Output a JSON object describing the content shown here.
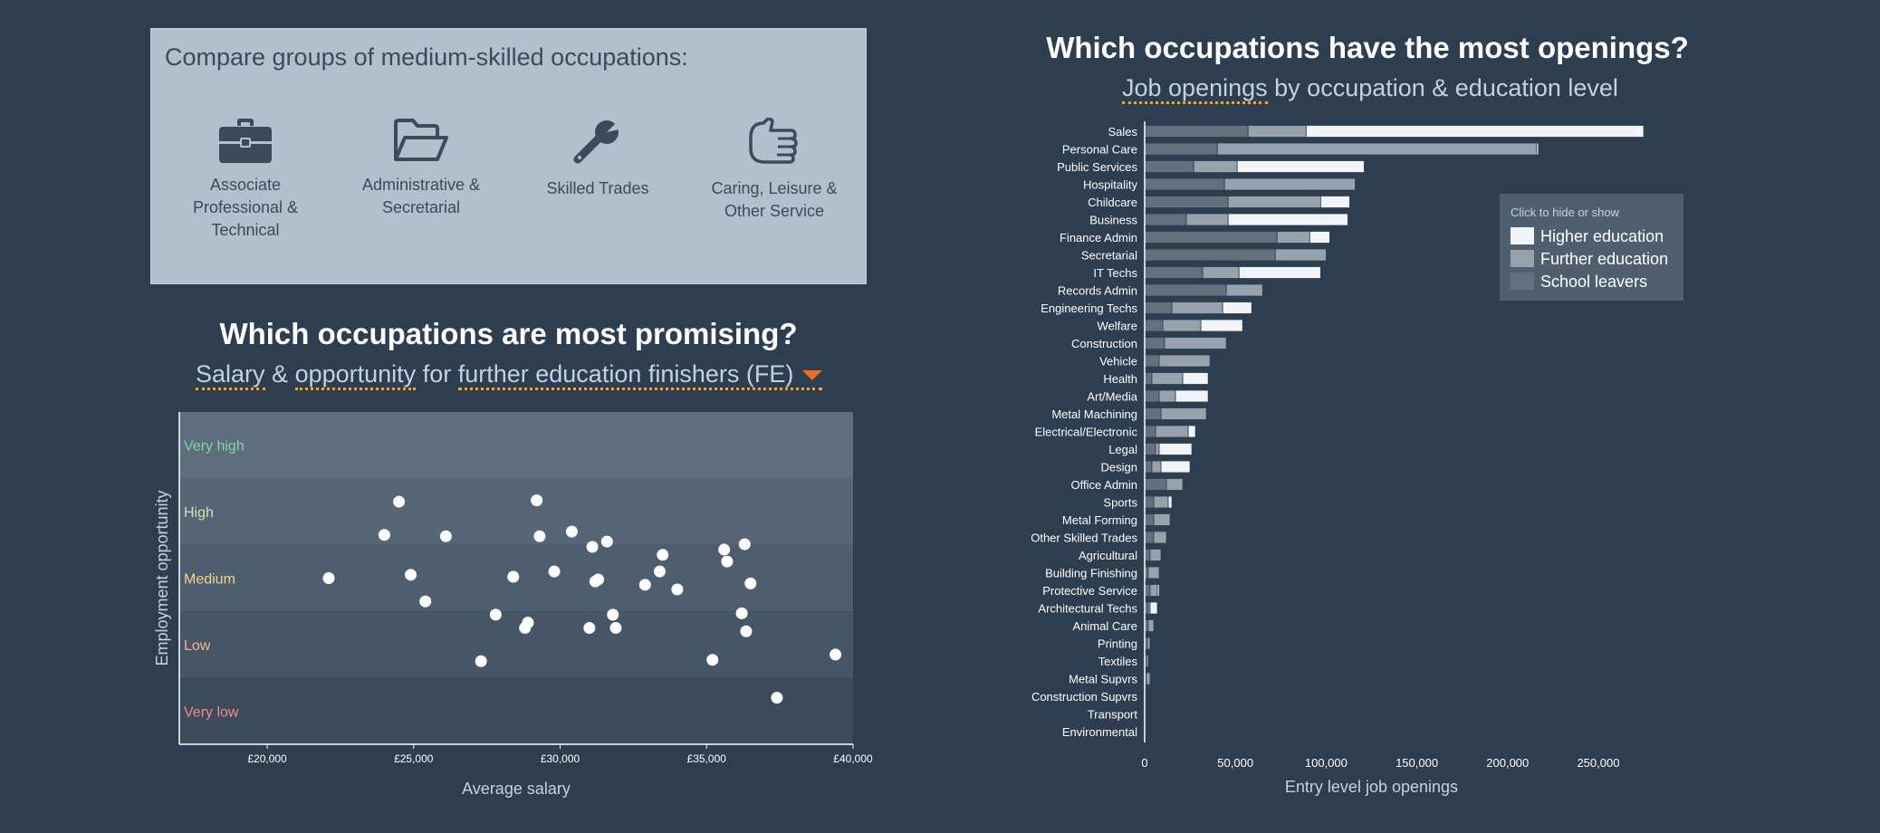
{
  "groups_panel": {
    "title": "Compare groups of medium-skilled occupations:",
    "groups": [
      {
        "line1": "Associate",
        "line2": "Professional &",
        "line3": "Technical",
        "icon": "briefcase-icon"
      },
      {
        "line1": "Administrative &",
        "line2": "Secretarial",
        "line3": "",
        "icon": "folder-icon"
      },
      {
        "line1": "Skilled Trades",
        "line2": "",
        "line3": "",
        "icon": "wrench-icon"
      },
      {
        "line1": "Caring, Leisure &",
        "line2": "Other Service",
        "line3": "",
        "icon": "hand-icon"
      }
    ]
  },
  "promising": {
    "title": "Which occupations are most promising?",
    "subtitle": {
      "part1": "Salary",
      "part2": "&",
      "part3": "opportunity",
      "part4": "for",
      "selector": "further education finishers (FE)"
    }
  },
  "openings": {
    "title": "Which occupations have the most openings?",
    "subtitle": {
      "part1": "Job openings",
      "part2": "by occupation & education level"
    }
  },
  "legend": {
    "title": "Click to hide or show",
    "items": [
      {
        "label": "Higher education",
        "color": "#f2f4f7"
      },
      {
        "label": "Further education",
        "color": "#97a2ad"
      },
      {
        "label": "School leavers",
        "color": "#63717f"
      }
    ]
  },
  "colors": {
    "background": "#2d3e50",
    "accent": "#f26b21",
    "underline": "#f5a623"
  },
  "chart_data": [
    {
      "type": "scatter",
      "xlabel": "Average salary",
      "ylabel": "Employment opportunity",
      "xlim": [
        17000,
        40000
      ],
      "xticks": [
        20000,
        25000,
        30000,
        35000,
        40000
      ],
      "xtick_labels": [
        "£20,000",
        "£25,000",
        "£30,000",
        "£35,000",
        "£40,000"
      ],
      "y_scale": "bands from 0 (bottom) to 5 (top)",
      "bands": [
        {
          "label": "Very high",
          "from": 4,
          "to": 5,
          "color": "#7ed6a0",
          "fill": "#5e6e7e"
        },
        {
          "label": "High",
          "from": 3,
          "to": 4,
          "color": "#d6e2a0",
          "fill": "#566676"
        },
        {
          "label": "Medium",
          "from": 2,
          "to": 3,
          "color": "#f2d48a",
          "fill": "#4d5e6f"
        },
        {
          "label": "Low",
          "from": 1,
          "to": 2,
          "color": "#f5b58a",
          "fill": "#455667"
        },
        {
          "label": "Very low",
          "from": 0,
          "to": 1,
          "color": "#ef8c8c",
          "fill": "#3b4b5c"
        }
      ],
      "points": [
        {
          "x": 22100,
          "y": 2.5
        },
        {
          "x": 24000,
          "y": 3.15
        },
        {
          "x": 24500,
          "y": 3.65
        },
        {
          "x": 24900,
          "y": 2.55
        },
        {
          "x": 25400,
          "y": 2.15
        },
        {
          "x": 26100,
          "y": 3.13
        },
        {
          "x": 27300,
          "y": 1.25
        },
        {
          "x": 27800,
          "y": 1.95
        },
        {
          "x": 28400,
          "y": 2.52
        },
        {
          "x": 28800,
          "y": 1.75
        },
        {
          "x": 28900,
          "y": 1.83
        },
        {
          "x": 29200,
          "y": 3.67
        },
        {
          "x": 29300,
          "y": 3.13
        },
        {
          "x": 29800,
          "y": 2.6
        },
        {
          "x": 30400,
          "y": 3.2
        },
        {
          "x": 31000,
          "y": 1.75
        },
        {
          "x": 31100,
          "y": 2.97
        },
        {
          "x": 31200,
          "y": 2.45
        },
        {
          "x": 31300,
          "y": 2.48
        },
        {
          "x": 31600,
          "y": 3.05
        },
        {
          "x": 31800,
          "y": 1.95
        },
        {
          "x": 31900,
          "y": 1.75
        },
        {
          "x": 32900,
          "y": 2.4
        },
        {
          "x": 33400,
          "y": 2.6
        },
        {
          "x": 33500,
          "y": 2.85
        },
        {
          "x": 34000,
          "y": 2.33
        },
        {
          "x": 35200,
          "y": 1.27
        },
        {
          "x": 35600,
          "y": 2.93
        },
        {
          "x": 35700,
          "y": 2.75
        },
        {
          "x": 36200,
          "y": 1.97
        },
        {
          "x": 36300,
          "y": 3.01
        },
        {
          "x": 36350,
          "y": 1.7
        },
        {
          "x": 36500,
          "y": 2.42
        },
        {
          "x": 37400,
          "y": 0.7
        },
        {
          "x": 39400,
          "y": 1.35
        }
      ]
    },
    {
      "type": "bar",
      "orientation": "horizontal",
      "stacked": true,
      "xlabel": "Entry level job openings",
      "xlim": [
        0,
        275000
      ],
      "xticks": [
        0,
        50000,
        100000,
        150000,
        200000,
        250000
      ],
      "xtick_labels": [
        "0",
        "50,000",
        "100,000",
        "150,000",
        "200,000",
        "250,000"
      ],
      "categories": [
        "Sales",
        "Personal Care",
        "Public Services",
        "Hospitality",
        "Childcare",
        "Business",
        "Finance Admin",
        "Secretarial",
        "IT Techs",
        "Records Admin",
        "Engineering Techs",
        "Welfare",
        "Construction",
        "Vehicle",
        "Health",
        "Art/Media",
        "Metal Machining",
        "Electrical/Electronic",
        "Legal",
        "Design",
        "Office Admin",
        "Sports",
        "Metal Forming",
        "Other Skilled Trades",
        "Agricultural",
        "Building Finishing",
        "Protective Service",
        "Architectural Techs",
        "Animal Care",
        "Printing",
        "Textiles",
        "Metal Supvrs",
        "Construction Supvrs",
        "Transport",
        "Environmental"
      ],
      "series": [
        {
          "name": "School leavers",
          "color": "#63717f",
          "values": [
            57000,
            40000,
            27000,
            44000,
            46000,
            23000,
            73000,
            72000,
            32000,
            45000,
            15000,
            10000,
            11000,
            8000,
            4000,
            8000,
            9000,
            6000,
            6000,
            4000,
            12000,
            5000,
            5000,
            5000,
            3000,
            2000,
            3000,
            2000,
            2000,
            1500,
            1000,
            1000,
            0,
            0,
            0
          ]
        },
        {
          "name": "Further education",
          "color": "#97a2ad",
          "values": [
            32000,
            176000,
            24000,
            72000,
            51000,
            23000,
            18000,
            28000,
            20000,
            20000,
            28000,
            21000,
            34000,
            28000,
            17000,
            9000,
            25000,
            18000,
            2000,
            5000,
            9000,
            8000,
            9000,
            7000,
            6000,
            6000,
            4000,
            1000,
            3000,
            1500,
            1000,
            2000,
            0,
            0,
            0
          ]
        },
        {
          "name": "Higher education",
          "color": "#f2f4f7",
          "values": [
            186000,
            1000,
            70000,
            0,
            16000,
            66000,
            11000,
            0,
            45000,
            0,
            16000,
            23000,
            0,
            0,
            14000,
            18000,
            0,
            4000,
            18000,
            16000,
            0,
            2000,
            0,
            0,
            0,
            0,
            1000,
            4000,
            0,
            0,
            0,
            0,
            0,
            0,
            0
          ]
        }
      ]
    }
  ]
}
